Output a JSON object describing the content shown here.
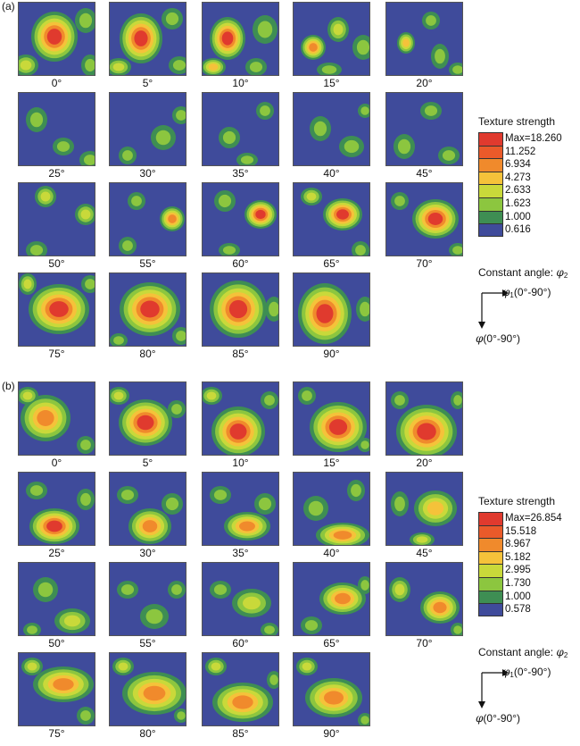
{
  "panel_a": {
    "label": "(a)",
    "angles": [
      "0°",
      "5°",
      "10°",
      "15°",
      "20°",
      "25°",
      "30°",
      "35°",
      "40°",
      "45°",
      "50°",
      "55°",
      "60°",
      "65°",
      "70°",
      "75°",
      "80°",
      "85°",
      "90°"
    ],
    "legend_title": "Texture strength",
    "legend_values": [
      "Max=18.260",
      "11.252",
      "6.934",
      "4.273",
      "2.633",
      "1.623",
      "1.000",
      "0.616"
    ],
    "constant_angle": "Constant angle:",
    "phi2": "φ",
    "phi2_sub": "2",
    "phi1_axis": "φ",
    "phi1_sub": "1",
    "phi1_range": "(0°-90°)",
    "phi_axis": "φ",
    "phi_range": "(0°-90°)"
  },
  "panel_b": {
    "label": "(b)",
    "angles": [
      "0°",
      "5°",
      "10°",
      "15°",
      "20°",
      "25°",
      "30°",
      "35°",
      "40°",
      "45°",
      "50°",
      "55°",
      "60°",
      "65°",
      "70°",
      "75°",
      "80°",
      "85°",
      "90°"
    ],
    "legend_title": "Texture strength",
    "legend_values": [
      "Max=26.854",
      "15.518",
      "8.967",
      "5.182",
      "2.995",
      "1.730",
      "1.000",
      "0.578"
    ],
    "constant_angle": "Constant angle:",
    "phi2": "φ",
    "phi2_sub": "2",
    "phi1_axis": "φ",
    "phi1_sub": "1",
    "phi1_range": "(0°-90°)",
    "phi_axis": "φ",
    "phi_range": "(0°-90°)"
  },
  "legend_colors": [
    "#e03a2e",
    "#ea5a2a",
    "#f08a2c",
    "#f5c23a",
    "#c9d93a",
    "#8cc63f",
    "#3e8e53",
    "#3f4b9b"
  ],
  "contour_palette": {
    "background": "#3f4b9b",
    "level1": "#3e8e53",
    "level2": "#8cc63f",
    "level3": "#c9d93a",
    "level4": "#f5c23a",
    "level5": "#f08a2c",
    "level6": "#e03a2e"
  }
}
